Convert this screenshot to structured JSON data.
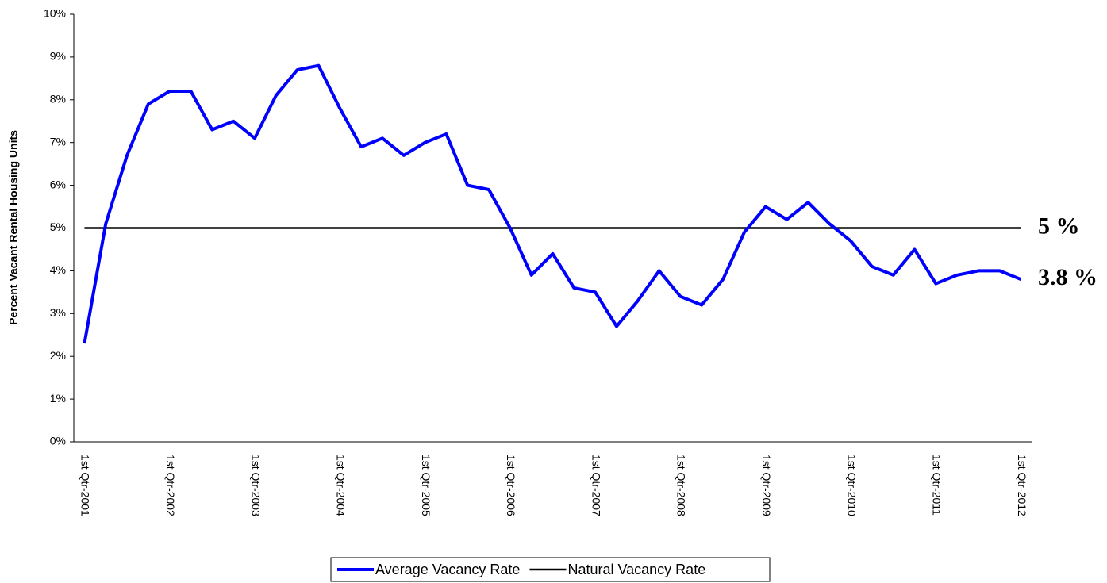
{
  "chart_data": {
    "type": "line",
    "y_label": "Percent Vacant Rental Housing Units",
    "categories": [
      "1st Qtr-2001",
      null,
      null,
      null,
      "1st Qtr-2002",
      null,
      null,
      null,
      "1st Qtr-2003",
      null,
      null,
      null,
      "1st Qtr-2004",
      null,
      null,
      null,
      "1st Qtr-2005",
      null,
      null,
      null,
      "1st Qtr-2006",
      null,
      null,
      null,
      "1st Qtr-2007",
      null,
      null,
      null,
      "1st Qtr-2008",
      null,
      null,
      null,
      "1st Qtr-2009",
      null,
      null,
      null,
      "1st Qtr-2010",
      null,
      null,
      null,
      "1st Qtr-2011",
      null,
      null,
      null,
      "1st Qtr-2012"
    ],
    "series": [
      {
        "name": "Average Vacancy Rate",
        "color": "#0000ff",
        "values": [
          2.3,
          5.1,
          6.7,
          7.9,
          8.2,
          8.2,
          7.3,
          7.5,
          7.1,
          8.1,
          8.7,
          8.8,
          7.8,
          6.9,
          7.1,
          6.7,
          7.0,
          7.2,
          6.0,
          5.9,
          5.0,
          3.9,
          4.4,
          3.6,
          3.5,
          2.7,
          3.3,
          4.0,
          3.4,
          3.2,
          3.8,
          4.9,
          5.5,
          5.2,
          5.6,
          5.1,
          4.7,
          4.1,
          3.9,
          4.5,
          3.7,
          3.9,
          4.0,
          4.0,
          3.8
        ]
      },
      {
        "name": "Natural Vacancy Rate",
        "color": "#000000",
        "values": [
          5,
          5,
          5,
          5,
          5,
          5,
          5,
          5,
          5,
          5,
          5,
          5,
          5,
          5,
          5,
          5,
          5,
          5,
          5,
          5,
          5,
          5,
          5,
          5,
          5,
          5,
          5,
          5,
          5,
          5,
          5,
          5,
          5,
          5,
          5,
          5,
          5,
          5,
          5,
          5,
          5,
          5,
          5,
          5,
          5
        ]
      }
    ],
    "annotations": [
      {
        "text": "3.8 %",
        "color": "#1f3fbf"
      },
      {
        "text": "5 %",
        "color": "#000000"
      }
    ],
    "ylim": [
      0,
      10
    ],
    "yticks": [
      {
        "value": 0,
        "label": "0%"
      },
      {
        "value": 1,
        "label": "1%"
      },
      {
        "value": 2,
        "label": "2%"
      },
      {
        "value": 3,
        "label": "3%"
      },
      {
        "value": 4,
        "label": "4%"
      },
      {
        "value": 5,
        "label": "5%"
      },
      {
        "value": 6,
        "label": "6%"
      },
      {
        "value": 7,
        "label": "7%"
      },
      {
        "value": 8,
        "label": "8%"
      },
      {
        "value": 9,
        "label": "9%"
      },
      {
        "value": 10,
        "label": "10%"
      }
    ],
    "grid": false,
    "legend": "bottom"
  }
}
